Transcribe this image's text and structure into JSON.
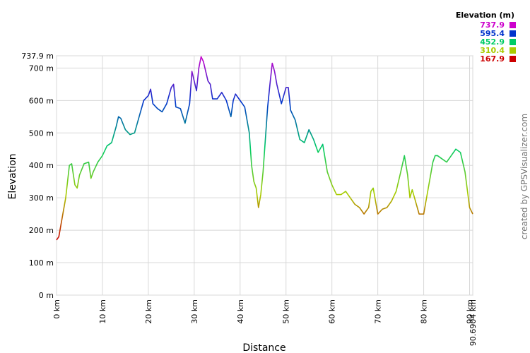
{
  "chart_data": {
    "type": "line",
    "x_label": "Distance",
    "y_label": "Elevation",
    "credit": "created by GPSVisualizer.com",
    "color_scale": {
      "title": "Elevation (m)",
      "values": [
        737.9,
        595.4,
        452.9,
        310.4,
        167.9
      ],
      "colors": [
        "#cc00cc",
        "#0033cc",
        "#00cc66",
        "#aacc00",
        "#cc0000"
      ]
    },
    "x": [
      0,
      0.5,
      1,
      2,
      2.8,
      3.3,
      4,
      4.5,
      5,
      6,
      7,
      7.5,
      8,
      9,
      10,
      11,
      12,
      13,
      13.5,
      14,
      15,
      16,
      17,
      18,
      19,
      20,
      20.5,
      21,
      22,
      23,
      24,
      25,
      25.5,
      26,
      27,
      28,
      29,
      29.5,
      30,
      30.5,
      31,
      31.5,
      32,
      33,
      33.5,
      34,
      35,
      36,
      37,
      38,
      38.5,
      39,
      40,
      41,
      42,
      42.5,
      43,
      43.5,
      44,
      44.5,
      45,
      46,
      46.5,
      47,
      47.5,
      48,
      49,
      50,
      50.5,
      51,
      52,
      53,
      54,
      55,
      56,
      57,
      58,
      59,
      60,
      61,
      62,
      63,
      64,
      65,
      66,
      67,
      68,
      68.5,
      69,
      70,
      71,
      72,
      73,
      74,
      75,
      75.8,
      76.5,
      77,
      77.5,
      78,
      79,
      80,
      81,
      82,
      82.5,
      83,
      84,
      85,
      86,
      87,
      88,
      89,
      90,
      90.69
    ],
    "values": [
      170,
      180,
      220,
      300,
      400,
      405,
      340,
      330,
      370,
      405,
      410,
      360,
      380,
      410,
      430,
      460,
      470,
      520,
      550,
      545,
      510,
      495,
      500,
      550,
      600,
      615,
      635,
      590,
      575,
      565,
      590,
      640,
      650,
      580,
      575,
      530,
      590,
      690,
      660,
      630,
      700,
      735,
      720,
      660,
      650,
      605,
      605,
      625,
      600,
      550,
      600,
      620,
      600,
      580,
      500,
      400,
      350,
      330,
      270,
      310,
      380,
      580,
      650,
      715,
      690,
      650,
      590,
      640,
      640,
      570,
      540,
      480,
      470,
      510,
      480,
      440,
      465,
      380,
      340,
      310,
      310,
      320,
      300,
      280,
      270,
      250,
      270,
      320,
      330,
      250,
      265,
      270,
      290,
      320,
      380,
      430,
      370,
      300,
      325,
      300,
      250,
      250,
      330,
      410,
      430,
      430,
      420,
      410,
      430,
      450,
      440,
      380,
      270,
      250
    ],
    "xlim": [
      0,
      90.6904
    ],
    "ylim": [
      0,
      737.9
    ],
    "xticks": [
      {
        "value": 0,
        "label": "0 km"
      },
      {
        "value": 10,
        "label": "10 km"
      },
      {
        "value": 20,
        "label": "20 km"
      },
      {
        "value": 30,
        "label": "30 km"
      },
      {
        "value": 40,
        "label": "40 km"
      },
      {
        "value": 50,
        "label": "50 km"
      },
      {
        "value": 60,
        "label": "60 km"
      },
      {
        "value": 70,
        "label": "70 km"
      },
      {
        "value": 80,
        "label": "80 km"
      },
      {
        "value": 90,
        "label": "90 km"
      },
      {
        "value": 90.6904,
        "label": "90.6904 km"
      }
    ],
    "yticks": [
      {
        "value": 0,
        "label": "0 m"
      },
      {
        "value": 100,
        "label": "100 m"
      },
      {
        "value": 200,
        "label": "200 m"
      },
      {
        "value": 300,
        "label": "300 m"
      },
      {
        "value": 400,
        "label": "400 m"
      },
      {
        "value": 500,
        "label": "500 m"
      },
      {
        "value": 600,
        "label": "600 m"
      },
      {
        "value": 700,
        "label": "700 m"
      },
      {
        "value": 737.9,
        "label": "737.9 m"
      }
    ],
    "grid": true
  }
}
